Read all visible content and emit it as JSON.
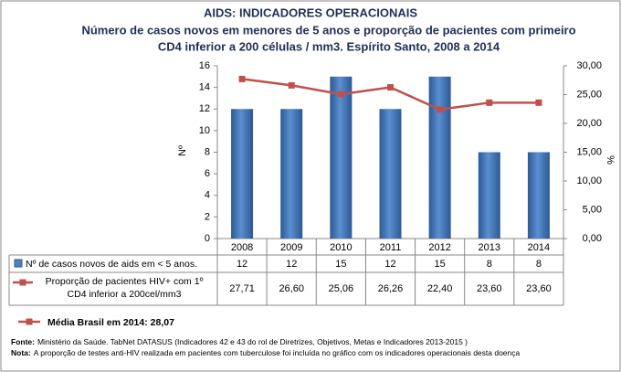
{
  "chart_data": {
    "type": "bar",
    "title": "AIDS: INDICADORES OPERACIONAIS",
    "subtitle_lines": [
      "Número de casos novos em menores de 5 anos e proporção de pacientes com primeiro",
      "CD4 inferior a 200 células / mm3. Espírito Santo, 2008 a 2014"
    ],
    "categories": [
      "2008",
      "2009",
      "2010",
      "2011",
      "2012",
      "2013",
      "2014"
    ],
    "series": [
      {
        "name": "Nº de casos novos de aids em < 5 anos.",
        "type": "bar",
        "color": "#4f81bd",
        "values": [
          12,
          12,
          15,
          12,
          15,
          8,
          8
        ]
      },
      {
        "name": "Proporção de pacientes HIV+ com 1º CD4 inferior a 200cel/mm3",
        "type": "line",
        "axis": "y2",
        "color": "#c0504d",
        "values": [
          27.71,
          26.6,
          25.06,
          26.26,
          22.4,
          23.6,
          23.6
        ],
        "value_labels": [
          "27,71",
          "26,60",
          "25,06",
          "26,26",
          "22,40",
          "23,60",
          "23,60"
        ]
      }
    ],
    "ylabel": "Nº",
    "y2label": "%",
    "ylim": [
      0,
      16
    ],
    "yticks": [
      0,
      2,
      4,
      6,
      8,
      10,
      12,
      14,
      16
    ],
    "y2lim": [
      0,
      30
    ],
    "y2ticks": [
      {
        "value": 0,
        "label": "0,00"
      },
      {
        "value": 5,
        "label": "5,00"
      },
      {
        "value": 10,
        "label": "10,00"
      },
      {
        "value": 15,
        "label": "15,00"
      },
      {
        "value": 20,
        "label": "20,00"
      },
      {
        "value": 25,
        "label": "25,00"
      },
      {
        "value": 30,
        "label": "30,00"
      }
    ],
    "grid": false,
    "annotation": "Média Brasil em 2014: 28,07",
    "source": {
      "label": "Fonte:",
      "text": "Ministério da Saúde. TabNet DATASUS (Indicadores 42 e 43 do rol de Diretrizes, Objetivos, Metas e Indicadores 2013-2015 )"
    },
    "note": {
      "label": "Nota:",
      "text": "A proporção de testes anti-HIV realizada em pacientes com tuberculose foi incluída no gráfico com os indicadores operacionais desta doença"
    }
  }
}
